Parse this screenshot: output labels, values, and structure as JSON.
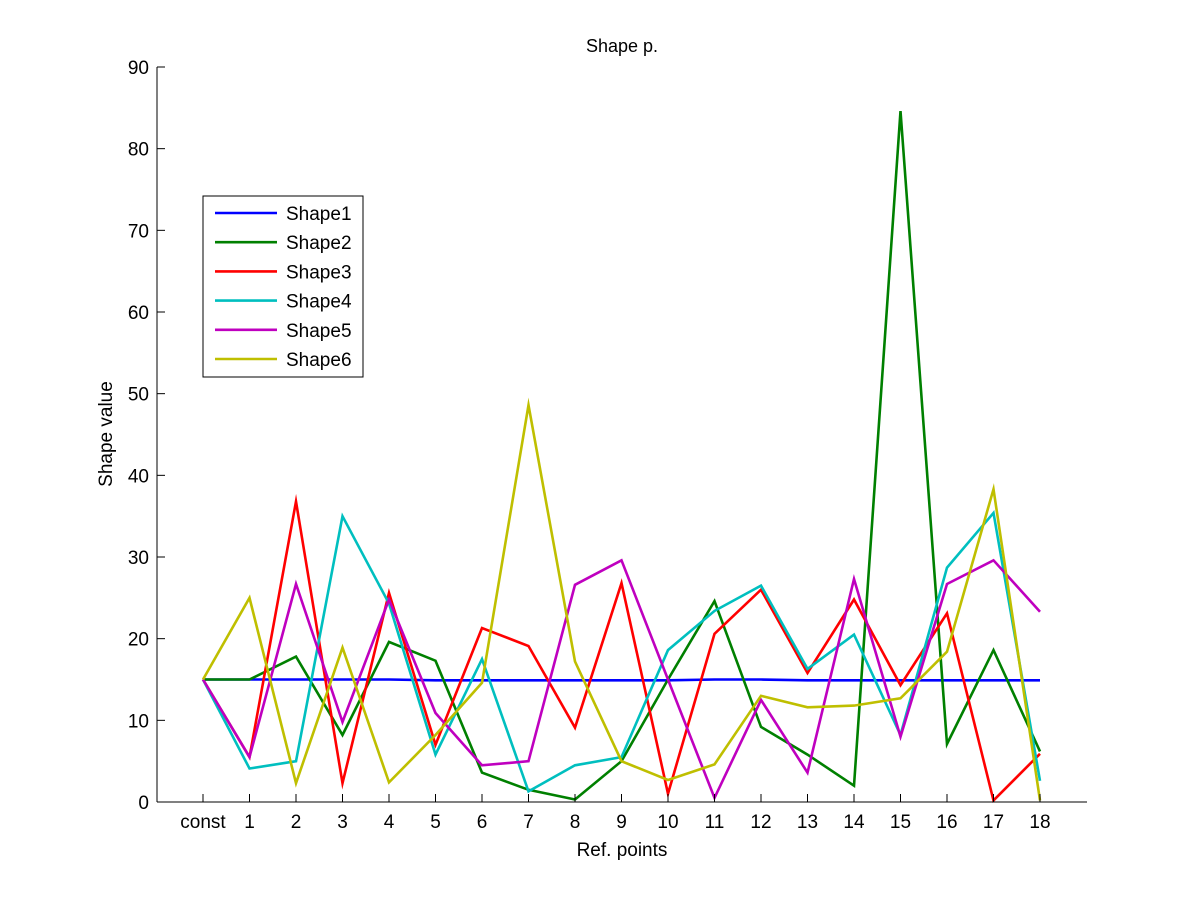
{
  "chart_data": {
    "type": "line",
    "title": "Shape p.",
    "xlabel": "Ref. points",
    "ylabel": "Shape value",
    "categories": [
      "const",
      "1",
      "2",
      "3",
      "4",
      "5",
      "6",
      "7",
      "8",
      "9",
      "10",
      "11",
      "12",
      "13",
      "14",
      "15",
      "16",
      "17",
      "18"
    ],
    "ylim": [
      0,
      90
    ],
    "yticks": [
      0,
      10,
      20,
      30,
      40,
      50,
      60,
      70,
      80,
      90
    ],
    "grid": false,
    "legend_position": "upper-left",
    "series": [
      {
        "name": "Shape1",
        "color": "#0000ff",
        "values": [
          15.0,
          15.0,
          15.0,
          15.0,
          15.0,
          14.9,
          14.9,
          14.9,
          14.9,
          14.9,
          14.9,
          15.0,
          15.0,
          14.9,
          14.9,
          14.9,
          14.9,
          14.9,
          14.9
        ]
      },
      {
        "name": "Shape2",
        "color": "#008000",
        "values": [
          15.0,
          15.0,
          17.8,
          8.2,
          19.6,
          17.3,
          3.6,
          1.5,
          0.3,
          5.0,
          15.0,
          24.6,
          9.2,
          5.8,
          2.0,
          84.6,
          7.1,
          18.6,
          6.2
        ]
      },
      {
        "name": "Shape3",
        "color": "#ff0000",
        "values": [
          15.0,
          5.5,
          36.8,
          2.3,
          25.6,
          7.0,
          21.3,
          19.1,
          9.1,
          26.8,
          1.0,
          20.6,
          26.0,
          15.8,
          24.8,
          14.3,
          23.1,
          0.2,
          5.9
        ]
      },
      {
        "name": "Shape4",
        "color": "#00bfbf",
        "values": [
          15.0,
          4.1,
          5.0,
          35.0,
          24.3,
          5.8,
          17.5,
          1.3,
          4.5,
          5.5,
          18.6,
          23.4,
          26.5,
          16.3,
          20.5,
          8.2,
          28.7,
          35.4,
          2.6
        ]
      },
      {
        "name": "Shape5",
        "color": "#bf00bf",
        "values": [
          15.0,
          5.5,
          26.7,
          9.8,
          24.8,
          10.9,
          4.5,
          5.0,
          26.6,
          29.6,
          15.0,
          0.5,
          12.5,
          3.6,
          27.3,
          8.0,
          26.7,
          29.6,
          23.3
        ]
      },
      {
        "name": "Shape6",
        "color": "#bfbf00",
        "values": [
          15.0,
          25.0,
          2.3,
          18.9,
          2.4,
          8.2,
          14.6,
          48.6,
          17.2,
          5.0,
          2.7,
          4.6,
          13.0,
          11.6,
          11.8,
          12.7,
          18.4,
          38.3,
          0.2
        ]
      }
    ]
  }
}
